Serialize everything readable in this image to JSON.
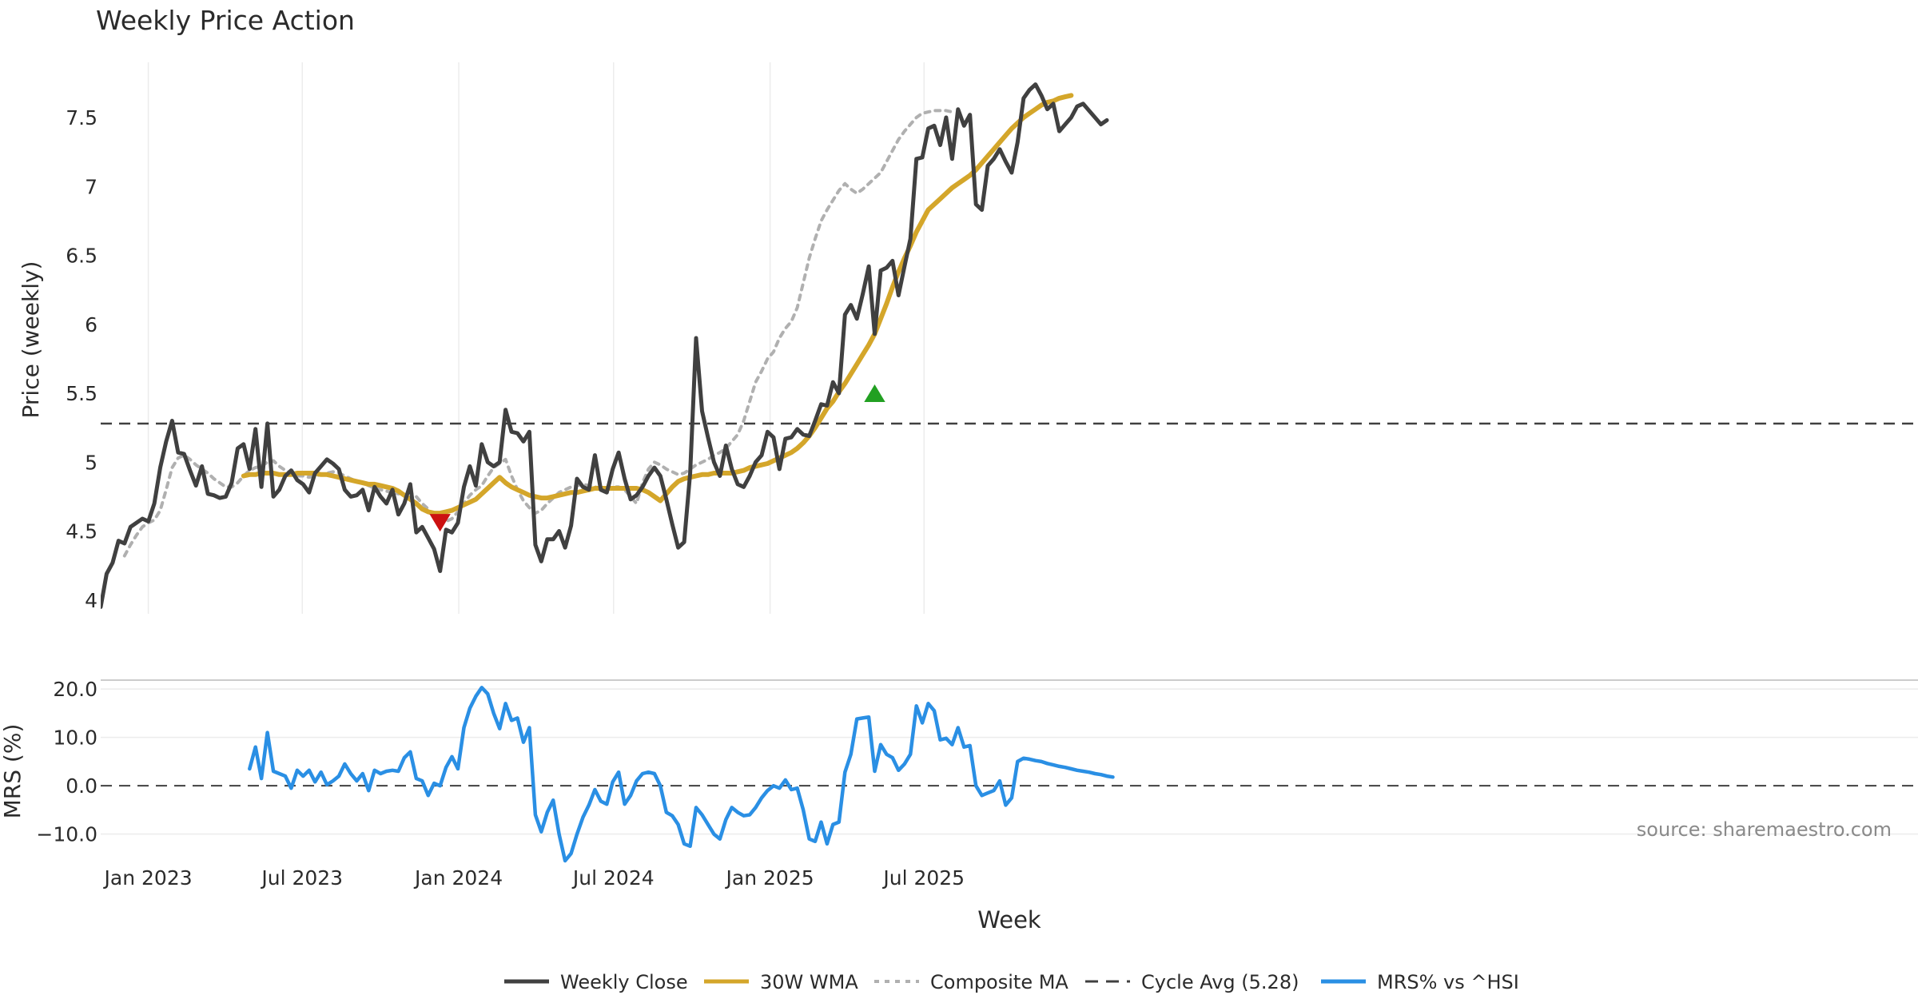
{
  "chart_data": {
    "type": "line",
    "title": "Weekly Price Action",
    "source": "source: sharemaestro.com",
    "xlabel": "Week",
    "x_ticks": [
      "Jan 2023",
      "Jul 2023",
      "Jan 2024",
      "Jul 2024",
      "Jan 2025",
      "Jul 2025"
    ],
    "x_tick_dates": [
      "2023-01-01",
      "2023-07-01",
      "2024-01-01",
      "2024-07-01",
      "2025-01-01",
      "2025-07-01"
    ],
    "x_range": [
      "2022-11-06",
      "2025-10-12"
    ],
    "price_panel": {
      "ylabel": "Price (weekly)",
      "ylim": [
        3.9,
        7.9
      ],
      "yticks": [
        4,
        4.5,
        5,
        5.5,
        6,
        6.5,
        7,
        7.5
      ],
      "ytick_labels": [
        "4",
        "4.5",
        "5",
        "5.5",
        "6",
        "6.5",
        "7",
        "7.5"
      ],
      "cycle_avg": 5.28,
      "series": [
        {
          "name": "Weekly Close",
          "key": "close",
          "color": "#404040",
          "start_week": 0,
          "values": [
            3.95,
            4.19,
            4.27,
            4.43,
            4.41,
            4.53,
            4.56,
            4.59,
            4.57,
            4.7,
            4.96,
            5.15,
            5.3,
            5.07,
            5.06,
            4.94,
            4.83,
            4.97,
            4.77,
            4.76,
            4.74,
            4.75,
            4.85,
            5.1,
            5.13,
            4.95,
            5.24,
            4.82,
            5.28,
            4.75,
            4.8,
            4.9,
            4.94,
            4.87,
            4.84,
            4.78,
            4.92,
            4.97,
            5.02,
            4.99,
            4.95,
            4.8,
            4.75,
            4.76,
            4.8,
            4.65,
            4.82,
            4.75,
            4.7,
            4.8,
            4.62,
            4.7,
            4.84,
            4.49,
            4.53,
            4.45,
            4.37,
            4.21,
            4.51,
            4.49,
            4.56,
            4.82,
            4.97,
            4.83,
            5.13,
            5.0,
            4.97,
            5.0,
            5.38,
            5.22,
            5.21,
            5.15,
            5.22,
            4.4,
            4.28,
            4.44,
            4.44,
            4.5,
            4.38,
            4.54,
            4.88,
            4.82,
            4.8,
            5.05,
            4.8,
            4.78,
            4.95,
            5.07,
            4.88,
            4.73,
            4.76,
            4.82,
            4.9,
            4.96,
            4.9,
            4.73,
            4.55,
            4.38,
            4.42,
            4.92,
            5.9,
            5.37,
            5.18,
            5.0,
            4.9,
            5.12,
            4.95,
            4.84,
            4.82,
            4.9,
            5.0,
            5.05,
            5.22,
            5.18,
            4.95,
            5.17,
            5.18,
            5.24,
            5.2,
            5.19,
            5.3,
            5.42,
            5.41,
            5.58,
            5.5,
            6.07,
            6.14,
            6.04,
            6.22,
            6.42,
            5.93,
            6.39,
            6.41,
            6.46,
            6.21,
            6.42,
            6.62,
            7.2,
            7.21,
            7.42,
            7.44,
            7.3,
            7.5,
            7.2,
            7.56,
            7.44,
            7.52,
            6.87,
            6.83,
            7.15,
            7.2,
            7.27,
            7.18,
            7.1,
            7.32,
            7.64,
            7.7,
            7.74,
            7.66,
            7.56,
            7.6,
            7.4,
            7.45,
            7.5,
            7.58,
            7.6,
            7.55,
            7.5,
            7.45,
            7.48
          ]
        },
        {
          "name": "30W WMA",
          "key": "wma",
          "color": "#d4a62a",
          "start_week": 24,
          "values": [
            4.9,
            4.91,
            4.91,
            4.92,
            4.92,
            4.92,
            4.91,
            4.91,
            4.91,
            4.92,
            4.92,
            4.92,
            4.92,
            4.91,
            4.91,
            4.9,
            4.89,
            4.88,
            4.87,
            4.86,
            4.85,
            4.84,
            4.84,
            4.83,
            4.82,
            4.81,
            4.79,
            4.76,
            4.73,
            4.7,
            4.66,
            4.64,
            4.63,
            4.63,
            4.64,
            4.65,
            4.67,
            4.69,
            4.71,
            4.73,
            4.77,
            4.81,
            4.85,
            4.89,
            4.85,
            4.82,
            4.8,
            4.78,
            4.76,
            4.75,
            4.74,
            4.74,
            4.75,
            4.76,
            4.77,
            4.78,
            4.78,
            4.79,
            4.8,
            4.81,
            4.81,
            4.81,
            4.81,
            4.81,
            4.81,
            4.81,
            4.81,
            4.8,
            4.78,
            4.75,
            4.72,
            4.77,
            4.82,
            4.86,
            4.88,
            4.89,
            4.9,
            4.91,
            4.91,
            4.92,
            4.92,
            4.92,
            4.92,
            4.93,
            4.94,
            4.96,
            4.97,
            4.98,
            4.99,
            5.01,
            5.03,
            5.05,
            5.07,
            5.1,
            5.14,
            5.19,
            5.25,
            5.32,
            5.39,
            5.44,
            5.51,
            5.57,
            5.64,
            5.71,
            5.78,
            5.85,
            5.93,
            6.04,
            6.15,
            6.27,
            6.38,
            6.48,
            6.57,
            6.67,
            6.75,
            6.83,
            6.87,
            6.91,
            6.95,
            6.99,
            7.02,
            7.05,
            7.08,
            7.12,
            7.17,
            7.22,
            7.27,
            7.32,
            7.37,
            7.42,
            7.46,
            7.5,
            7.53,
            7.56,
            7.59,
            7.61,
            7.62,
            7.64,
            7.65,
            7.66
          ]
        },
        {
          "name": "Composite MA",
          "key": "composite",
          "color": "#b0b0b0",
          "start_week": 4,
          "values": [
            4.32,
            4.4,
            4.47,
            4.53,
            4.56,
            4.58,
            4.65,
            4.8,
            4.96,
            5.03,
            5.05,
            5.02,
            4.98,
            4.95,
            4.92,
            4.88,
            4.85,
            4.82,
            4.82,
            4.85,
            4.9,
            4.94,
            4.96,
            4.97,
            5.0,
            5.01,
            4.97,
            4.94,
            4.92,
            4.9,
            4.9,
            4.89,
            4.9,
            4.91,
            4.92,
            4.93,
            4.92,
            4.9,
            4.88,
            4.86,
            4.85,
            4.83,
            4.81,
            4.8,
            4.79,
            4.78,
            4.77,
            4.78,
            4.78,
            4.75,
            4.7,
            4.66,
            4.61,
            4.58,
            4.57,
            4.59,
            4.64,
            4.7,
            4.76,
            4.8,
            4.83,
            4.9,
            4.96,
            4.99,
            5.02,
            4.9,
            4.8,
            4.72,
            4.67,
            4.63,
            4.65,
            4.7,
            4.74,
            4.78,
            4.8,
            4.82,
            4.83,
            4.84,
            4.83,
            4.82,
            4.81,
            4.81,
            4.82,
            4.82,
            4.8,
            4.75,
            4.7,
            4.85,
            4.95,
            5.0,
            4.98,
            4.95,
            4.93,
            4.91,
            4.92,
            4.95,
            4.98,
            5.0,
            5.02,
            5.05,
            5.07,
            5.1,
            5.15,
            5.2,
            5.3,
            5.44,
            5.58,
            5.66,
            5.75,
            5.8,
            5.9,
            5.97,
            6.02,
            6.12,
            6.3,
            6.48,
            6.62,
            6.75,
            6.83,
            6.9,
            6.97,
            7.02,
            6.98,
            6.95,
            6.98,
            7.02,
            7.06,
            7.1,
            7.18,
            7.26,
            7.34,
            7.4,
            7.45,
            7.5,
            7.53,
            7.54,
            7.55,
            7.55,
            7.55,
            7.54
          ]
        }
      ],
      "markers": [
        {
          "type": "sell",
          "label": "sell-signal",
          "week": 57,
          "value": 4.56,
          "color": "#cc1111"
        },
        {
          "type": "buy",
          "label": "buy-signal",
          "week": 130,
          "value": 5.5,
          "color": "#22a022"
        }
      ]
    },
    "mrs_panel": {
      "ylabel": "MRS (%)",
      "ylim": [
        -16,
        22
      ],
      "yticks": [
        20,
        10,
        0,
        -10
      ],
      "ytick_labels": [
        "20.0",
        "10.0",
        "0.0",
        "−10.0"
      ],
      "zero_line": 0,
      "series": [
        {
          "name": "MRS% vs ^HSI",
          "key": "mrs",
          "color": "#2a8fe4",
          "start_week": 25,
          "values": [
            3.5,
            8.0,
            1.5,
            11.0,
            3.0,
            2.5,
            2.0,
            -0.5,
            3.2,
            2.0,
            3.2,
            0.8,
            2.8,
            0.2,
            1.0,
            2.0,
            4.5,
            2.5,
            1.0,
            2.5,
            -1.0,
            3.2,
            2.5,
            3.0,
            3.2,
            3.0,
            5.8,
            7.0,
            1.5,
            1.0,
            -2.0,
            0.5,
            0.0,
            3.8,
            6.0,
            3.5,
            12.0,
            16.0,
            18.5,
            20.3,
            19.0,
            15.0,
            11.8,
            17.0,
            13.5,
            14.0,
            9.0,
            12.0,
            -6.0,
            -9.5,
            -5.5,
            -3.0,
            -10.0,
            -15.5,
            -14.0,
            -10.0,
            -6.5,
            -4.0,
            -0.8,
            -3.2,
            -3.8,
            0.8,
            2.8,
            -3.8,
            -2.0,
            1.0,
            2.5,
            2.8,
            2.5,
            0.0,
            -5.5,
            -6.2,
            -8.0,
            -12.0,
            -12.5,
            -4.5,
            -6.0,
            -8.0,
            -10.0,
            -11.0,
            -7.0,
            -4.5,
            -5.5,
            -6.2,
            -6.0,
            -4.5,
            -2.5,
            -1.0,
            0.0,
            -0.5,
            1.2,
            -0.8,
            -0.5,
            -5.0,
            -11.0,
            -11.5,
            -7.5,
            -12.0,
            -8.0,
            -7.5,
            2.8,
            6.5,
            13.8,
            14.0,
            14.2,
            3.0,
            8.5,
            6.5,
            5.8,
            3.2,
            4.5,
            6.5,
            16.5,
            13.0,
            17.0,
            15.5,
            9.5,
            9.8,
            8.5,
            12.0,
            8.0,
            8.3,
            0.0,
            -2.0,
            -1.5,
            -1.0,
            1.0,
            -4.0,
            -2.5,
            5.0,
            5.7,
            5.5,
            5.2,
            5.0,
            4.6,
            4.3,
            4.0,
            3.8,
            3.5,
            3.2,
            3.0,
            2.8,
            2.5,
            2.3,
            2.0,
            1.8
          ]
        }
      ]
    },
    "legend": {
      "position": "bottom-center",
      "entries": [
        {
          "label": "Weekly Close",
          "style": "solid",
          "color": "#404040"
        },
        {
          "label": "30W WMA",
          "style": "solid",
          "color": "#d4a62a"
        },
        {
          "label": "Composite MA",
          "style": "dotted",
          "color": "#b0b0b0"
        },
        {
          "label": "Cycle Avg (5.28)",
          "style": "dashed",
          "color": "#404040"
        },
        {
          "label": "MRS% vs ^HSI",
          "style": "solid",
          "color": "#2a8fe4"
        }
      ]
    }
  }
}
